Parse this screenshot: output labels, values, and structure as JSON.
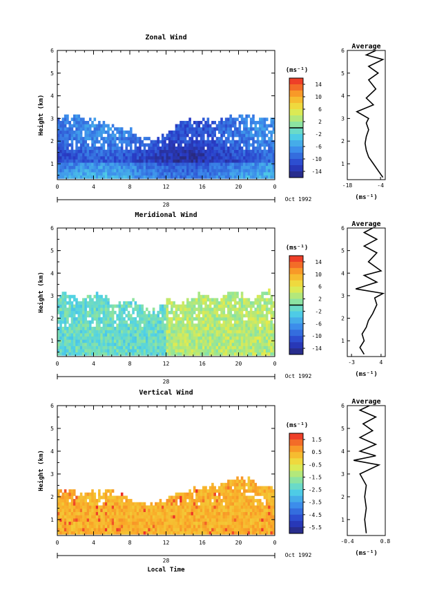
{
  "chart_data": [
    {
      "id": "zonal",
      "type": "heatmap",
      "title": "Zonal Wind",
      "xlabel": "",
      "ylabel": "Height (km)",
      "x_ticks": [
        "0",
        "4",
        "8",
        "12",
        "16",
        "20",
        "0"
      ],
      "date_day": "28",
      "date_label": "Oct 1992",
      "y_ticks": [
        "1",
        "2",
        "3",
        "4",
        "5",
        "6"
      ],
      "xlim": [
        0,
        24
      ],
      "ylim": [
        0.3,
        6
      ],
      "colorbar": {
        "unit": "(ms⁻¹)",
        "ticks": [
          "14",
          "10",
          "6",
          "2",
          "-2",
          "-6",
          "-10",
          "-14"
        ],
        "range": [
          -16,
          16
        ],
        "marker": 0
      },
      "profile": {
        "title": "Average",
        "unit": "(ms⁻¹)",
        "x_ticks": [
          "-18",
          "-4"
        ],
        "xlim": [
          -18,
          -2
        ],
        "y_ticks": [
          "1",
          "2",
          "3",
          "4",
          "5",
          "6"
        ],
        "ylim": [
          0.3,
          6
        ],
        "points": [
          [
            -3,
            0.4
          ],
          [
            -5,
            0.7
          ],
          [
            -7,
            1.0
          ],
          [
            -9,
            1.3
          ],
          [
            -10,
            1.6
          ],
          [
            -10.5,
            1.9
          ],
          [
            -10,
            2.2
          ],
          [
            -9,
            2.5
          ],
          [
            -10,
            2.8
          ],
          [
            -9,
            3.0
          ],
          [
            -14,
            3.3
          ],
          [
            -7,
            3.6
          ],
          [
            -10,
            3.9
          ],
          [
            -6,
            4.3
          ],
          [
            -9,
            4.7
          ],
          [
            -5,
            5.0
          ],
          [
            -9,
            5.3
          ],
          [
            -3,
            5.6
          ],
          [
            -10,
            5.8
          ],
          [
            -6,
            6.0
          ]
        ]
      }
    },
    {
      "id": "meridional",
      "type": "heatmap",
      "title": "Meridional Wind",
      "xlabel": "",
      "ylabel": "Height (km)",
      "x_ticks": [
        "0",
        "4",
        "8",
        "12",
        "16",
        "20",
        "0"
      ],
      "date_day": "28",
      "date_label": "Oct 1992",
      "y_ticks": [
        "1",
        "2",
        "3",
        "4",
        "5",
        "6"
      ],
      "xlim": [
        0,
        24
      ],
      "ylim": [
        0.3,
        6
      ],
      "colorbar": {
        "unit": "(ms⁻¹)",
        "ticks": [
          "14",
          "10",
          "6",
          "2",
          "-2",
          "-6",
          "-10",
          "-14"
        ],
        "range": [
          -16,
          16
        ],
        "marker": 0
      },
      "profile": {
        "title": "Average",
        "unit": "(ms⁻¹)",
        "x_ticks": [
          "-3",
          "4"
        ],
        "xlim": [
          -4,
          5
        ],
        "y_ticks": [
          "1",
          "2",
          "3",
          "4",
          "5",
          "6"
        ],
        "ylim": [
          0.3,
          6
        ],
        "points": [
          [
            0,
            0.4
          ],
          [
            -1,
            0.7
          ],
          [
            0,
            1.0
          ],
          [
            -0.5,
            1.3
          ],
          [
            0.5,
            1.6
          ],
          [
            1,
            1.9
          ],
          [
            2,
            2.2
          ],
          [
            3,
            2.6
          ],
          [
            2.5,
            2.9
          ],
          [
            4.5,
            3.1
          ],
          [
            -2,
            3.3
          ],
          [
            3,
            3.6
          ],
          [
            0,
            3.9
          ],
          [
            4,
            4.1
          ],
          [
            1,
            4.5
          ],
          [
            3,
            4.9
          ],
          [
            0,
            5.2
          ],
          [
            3,
            5.5
          ],
          [
            0,
            5.8
          ],
          [
            2,
            6.0
          ]
        ]
      }
    },
    {
      "id": "vertical",
      "type": "heatmap",
      "title": "Vertical Wind",
      "xlabel": "Local Time",
      "ylabel": "Height (km)",
      "x_ticks": [
        "0",
        "4",
        "8",
        "12",
        "16",
        "20",
        "0"
      ],
      "date_day": "28",
      "date_label": "Oct 1992",
      "y_ticks": [
        "1",
        "2",
        "3",
        "4",
        "5",
        "6"
      ],
      "xlim": [
        0,
        24
      ],
      "ylim": [
        0.3,
        6
      ],
      "colorbar": {
        "unit": "(ms⁻¹)",
        "ticks": [
          "1.5",
          "0.5",
          "-0.5",
          "-1.5",
          "-2.5",
          "-3.5",
          "-4.5",
          "-5.5"
        ],
        "range": [
          -6,
          2
        ],
        "marker": null
      },
      "profile": {
        "title": "Average",
        "unit": "(ms⁻¹)",
        "x_ticks": [
          "-0.4",
          "0.8"
        ],
        "xlim": [
          -0.4,
          0.8
        ],
        "y_ticks": [
          "1",
          "2",
          "3",
          "4",
          "5",
          "6"
        ],
        "ylim": [
          0.3,
          6
        ],
        "points": [
          [
            0.2,
            0.4
          ],
          [
            0.15,
            1.0
          ],
          [
            0.2,
            1.5
          ],
          [
            0.15,
            2.0
          ],
          [
            0.2,
            2.5
          ],
          [
            0.0,
            3.0
          ],
          [
            0.6,
            3.4
          ],
          [
            -0.2,
            3.6
          ],
          [
            0.5,
            3.8
          ],
          [
            0.0,
            4.0
          ],
          [
            0.5,
            4.3
          ],
          [
            0.0,
            4.6
          ],
          [
            0.4,
            4.9
          ],
          [
            0.1,
            5.2
          ],
          [
            0.5,
            5.5
          ],
          [
            0.0,
            5.8
          ],
          [
            0.3,
            6.0
          ]
        ]
      }
    }
  ]
}
